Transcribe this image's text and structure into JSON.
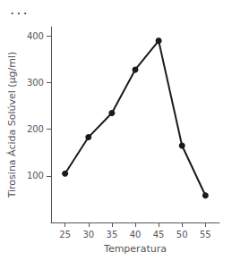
{
  "chart_data": {
    "type": "line",
    "annotation": "...",
    "xlabel": "Temperatura",
    "ylabel": "Tirosina Ácida Solúvel (μg/ml)",
    "x": [
      25,
      30,
      35,
      40,
      45,
      50,
      55
    ],
    "values": [
      105,
      183,
      235,
      328,
      390,
      165,
      58
    ],
    "color": "#1a1a1a",
    "marker": "circle",
    "xlim": [
      22,
      58
    ],
    "xticks": [
      25,
      30,
      35,
      40,
      45,
      50,
      55
    ],
    "ylim": [
      0,
      420
    ],
    "yticks": [
      100,
      200,
      300,
      400
    ],
    "grid": false
  }
}
